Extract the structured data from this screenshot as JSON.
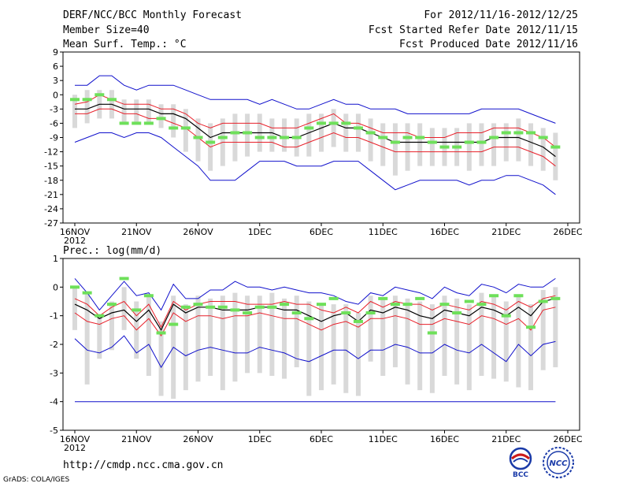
{
  "header": {
    "title": "DERF/NCC/BCC Monthly Forecast",
    "member_size": "Member Size=40",
    "variable": "Mean Surf. Temp.: °C",
    "period": "For 2012/11/16-2012/12/25",
    "fcst_started": "Fcst Started Refer Date 2012/11/15",
    "fcst_produced": "Fcst Produced Date 2012/11/16"
  },
  "footer": {
    "url": "http://cmdp.ncc.cma.gov.cn",
    "credit": "GrADS: COLA/IGES",
    "logo_left_text": "BCC",
    "logo_right_text": "NCC"
  },
  "colors": {
    "mean": "#000000",
    "spread": "#e8202a",
    "extreme": "#1010cc",
    "obs": "#6ee05a",
    "box": "#d9d9d9"
  },
  "chart_data": [
    {
      "type": "line",
      "title": "Mean Surf. Temp.: °C",
      "ylim": [
        -27,
        9
      ],
      "yticks": [
        "9",
        "6",
        "3",
        "0",
        "-3",
        "-6",
        "-9",
        "-12",
        "-15",
        "-18",
        "-21",
        "-24",
        "-27"
      ],
      "xticks": [
        {
          "day": 1,
          "label": "16NOV",
          "sub": "2012"
        },
        {
          "day": 6,
          "label": "21NOV"
        },
        {
          "day": 11,
          "label": "26NOV"
        },
        {
          "day": 16,
          "label": "1DEC"
        },
        {
          "day": 21,
          "label": "6DEC"
        },
        {
          "day": 26,
          "label": "11DEC"
        },
        {
          "day": 31,
          "label": "16DEC"
        },
        {
          "day": 36,
          "label": "21DEC"
        },
        {
          "day": 41,
          "label": "26DEC"
        }
      ],
      "days": 40,
      "series": [
        {
          "name": "max",
          "values": [
            2,
            2,
            4,
            4,
            2,
            1,
            2,
            2,
            2,
            1,
            0,
            -1,
            -1,
            -1,
            -1,
            -2,
            -1,
            -2,
            -3,
            -3,
            -2,
            -1,
            -2,
            -2,
            -3,
            -3,
            -3,
            -4,
            -4,
            -4,
            -4,
            -4,
            -4,
            -3,
            -3,
            -3,
            -3,
            -4,
            -5,
            -6
          ]
        },
        {
          "name": "upper",
          "values": [
            -2,
            -1.5,
            0,
            -1,
            -2,
            -2,
            -2,
            -3,
            -3,
            -4,
            -6,
            -7,
            -6,
            -6,
            -6,
            -6,
            -7,
            -7,
            -7,
            -6,
            -5,
            -4,
            -6,
            -6,
            -7,
            -8,
            -8,
            -8,
            -9,
            -9,
            -9,
            -8,
            -8,
            -8,
            -7,
            -7,
            -7,
            -8,
            -9,
            -11
          ]
        },
        {
          "name": "mean",
          "values": [
            -3,
            -3,
            -2,
            -2,
            -3,
            -3,
            -3,
            -4,
            -4,
            -5,
            -7,
            -9,
            -8,
            -8,
            -8,
            -8,
            -8,
            -9,
            -9,
            -8,
            -7,
            -6,
            -7,
            -7,
            -8,
            -9,
            -10,
            -10,
            -10,
            -10,
            -10,
            -10,
            -10,
            -10,
            -9,
            -9,
            -9,
            -10,
            -11,
            -13
          ]
        },
        {
          "name": "lower",
          "values": [
            -4,
            -4,
            -3,
            -3,
            -4,
            -4,
            -5,
            -5,
            -6,
            -7,
            -9,
            -11,
            -10,
            -10,
            -10,
            -10,
            -10,
            -11,
            -11,
            -10,
            -9,
            -8,
            -9,
            -9,
            -10,
            -11,
            -12,
            -12,
            -12,
            -12,
            -12,
            -12,
            -12,
            -12,
            -11,
            -11,
            -11,
            -12,
            -13,
            -15
          ]
        },
        {
          "name": "min",
          "values": [
            -10,
            -9,
            -8,
            -8,
            -9,
            -8,
            -8,
            -9,
            -11,
            -13,
            -15,
            -18,
            -18,
            -18,
            -16,
            -14,
            -14,
            -14,
            -15,
            -15,
            -15,
            -14,
            -14,
            -14,
            -16,
            -18,
            -20,
            -19,
            -18,
            -18,
            -18,
            -18,
            -19,
            -18,
            -18,
            -17,
            -17,
            -18,
            -19,
            -21
          ]
        }
      ],
      "boxes": {
        "high": [
          0,
          1,
          1,
          1,
          -1,
          -1,
          -1,
          -2,
          -2,
          -3,
          -5,
          -6,
          -5,
          -4,
          -4,
          -4,
          -5,
          -5,
          -5,
          -4,
          -4,
          -3,
          -4,
          -4,
          -5,
          -6,
          -6,
          -6,
          -6,
          -7,
          -7,
          -7,
          -6,
          -6,
          -6,
          -6,
          -5,
          -6,
          -7,
          -8
        ],
        "low": [
          -7,
          -6,
          -5,
          -5,
          -6,
          -6,
          -6,
          -7,
          -9,
          -12,
          -14,
          -16,
          -15,
          -14,
          -13,
          -12,
          -12,
          -12,
          -13,
          -13,
          -12,
          -11,
          -12,
          -12,
          -14,
          -15,
          -17,
          -16,
          -15,
          -15,
          -15,
          -15,
          -16,
          -15,
          -15,
          -14,
          -14,
          -15,
          -16,
          -18
        ]
      },
      "obs": [
        -1,
        -1,
        0,
        -1,
        -6,
        -6,
        -6,
        -5,
        -7,
        -7,
        -9,
        -10,
        -9,
        -8,
        -8,
        -9,
        -9,
        -9,
        -9,
        -7,
        -6,
        -6,
        -6,
        -7,
        -8,
        -9,
        -10,
        -9,
        -9,
        -10,
        -11,
        -11,
        -10,
        -10,
        -9,
        -8,
        -8,
        -8,
        -9,
        -11
      ]
    },
    {
      "type": "line",
      "title": "Prec.: log(mm/d)",
      "ylim": [
        -5,
        1
      ],
      "yticks": [
        "1",
        "0",
        "-1",
        "-2",
        "-3",
        "-4",
        "-5"
      ],
      "xticks": [
        {
          "day": 1,
          "label": "16NOV",
          "sub": "2012"
        },
        {
          "day": 6,
          "label": "21NOV"
        },
        {
          "day": 11,
          "label": "26NOV"
        },
        {
          "day": 16,
          "label": "1DEC"
        },
        {
          "day": 21,
          "label": "6DEC"
        },
        {
          "day": 26,
          "label": "11DEC"
        },
        {
          "day": 31,
          "label": "16DEC"
        },
        {
          "day": 36,
          "label": "21DEC"
        },
        {
          "day": 41,
          "label": "26DEC"
        }
      ],
      "days": 40,
      "series": [
        {
          "name": "max",
          "values": [
            0.3,
            -0.2,
            -0.8,
            -0.3,
            0.2,
            -0.3,
            -0.2,
            -0.8,
            0.1,
            -0.4,
            -0.4,
            -0.1,
            -0.1,
            0.2,
            0,
            0,
            -0.1,
            0,
            -0.1,
            -0.2,
            -0.2,
            -0.3,
            -0.5,
            -0.6,
            -0.2,
            -0.3,
            0,
            -0.1,
            -0.2,
            -0.4,
            0,
            -0.2,
            -0.3,
            0.1,
            0,
            -0.2,
            0.1,
            0,
            0,
            0.3
          ]
        },
        {
          "name": "upper",
          "values": [
            -0.4,
            -0.6,
            -1,
            -0.7,
            -0.5,
            -1,
            -0.6,
            -1.4,
            -0.5,
            -0.8,
            -0.6,
            -0.5,
            -0.5,
            -0.5,
            -0.6,
            -0.6,
            -0.6,
            -0.5,
            -0.6,
            -0.6,
            -0.8,
            -0.9,
            -0.7,
            -0.9,
            -0.5,
            -0.7,
            -0.5,
            -0.6,
            -0.6,
            -0.8,
            -0.6,
            -0.7,
            -0.8,
            -0.5,
            -0.6,
            -0.8,
            -0.5,
            -0.7,
            -0.4,
            -0.3
          ]
        },
        {
          "name": "mean",
          "values": [
            -0.6,
            -0.8,
            -1.1,
            -0.9,
            -0.8,
            -1.2,
            -0.8,
            -1.5,
            -0.6,
            -0.9,
            -0.7,
            -0.7,
            -0.8,
            -0.8,
            -0.8,
            -0.7,
            -0.7,
            -0.8,
            -0.8,
            -1,
            -1.2,
            -1,
            -0.9,
            -1.2,
            -0.8,
            -0.9,
            -0.7,
            -0.8,
            -1,
            -1.1,
            -0.8,
            -0.9,
            -1,
            -0.7,
            -0.8,
            -1,
            -0.7,
            -1,
            -0.5,
            -0.4
          ]
        },
        {
          "name": "lower",
          "values": [
            -0.9,
            -1.2,
            -1.3,
            -1.1,
            -1,
            -1.5,
            -1.1,
            -1.7,
            -0.9,
            -1.2,
            -1,
            -1,
            -1.1,
            -1,
            -1,
            -0.9,
            -1,
            -1.1,
            -1.1,
            -1.3,
            -1.5,
            -1.3,
            -1.2,
            -1.4,
            -1.1,
            -1.1,
            -1,
            -1.1,
            -1.3,
            -1.3,
            -1.1,
            -1.2,
            -1.3,
            -1,
            -1.1,
            -1.3,
            -1.1,
            -1.5,
            -0.8,
            -0.7
          ]
        },
        {
          "name": "min",
          "values": [
            -1.8,
            -2.2,
            -2.3,
            -2.1,
            -1.7,
            -2.3,
            -2,
            -2.8,
            -2.1,
            -2.4,
            -2.2,
            -2.1,
            -2.2,
            -2.3,
            -2.3,
            -2.1,
            -2.2,
            -2.3,
            -2.5,
            -2.6,
            -2.4,
            -2.2,
            -2.2,
            -2.5,
            -2.2,
            -2.2,
            -2,
            -2.1,
            -2.3,
            -2.3,
            -2,
            -2.2,
            -2.3,
            -2,
            -2.3,
            -2.6,
            -2,
            -2.4,
            -2,
            -1.9
          ]
        },
        {
          "name": "floor",
          "values": [
            -4,
            -4,
            -4,
            -4,
            -4,
            -4,
            -4,
            -4,
            -4,
            -4,
            -4,
            -4,
            -4,
            -4,
            -4,
            -4,
            -4,
            -4,
            -4,
            -4,
            -4,
            -4,
            -4,
            -4,
            -4,
            -4,
            -4,
            -4,
            -4,
            -4,
            -4,
            -4,
            -4,
            -4,
            -4,
            -4,
            -4,
            -4,
            -4,
            -4
          ]
        }
      ],
      "boxes": {
        "high": [
          0,
          -0.2,
          -1,
          -0.5,
          0,
          -0.5,
          -0.3,
          -1.2,
          -0.3,
          -0.6,
          -0.3,
          -0.4,
          -0.3,
          -0.2,
          -0.3,
          -0.3,
          -0.2,
          -0.4,
          -0.3,
          -0.5,
          -0.6,
          -0.6,
          -0.6,
          -0.9,
          -0.3,
          -0.4,
          -0.3,
          -0.4,
          -0.5,
          -0.6,
          -0.3,
          -0.4,
          -0.6,
          -0.2,
          -0.3,
          -0.5,
          -0.3,
          -0.6,
          -0.1,
          0
        ],
        "low": [
          -1.5,
          -3.4,
          -2.5,
          -2.2,
          -1.5,
          -2.5,
          -3.1,
          -3.8,
          -3.9,
          -3.6,
          -3.3,
          -3.1,
          -3.6,
          -3.3,
          -3,
          -3,
          -3.1,
          -3.2,
          -2.8,
          -3.8,
          -3.6,
          -3.4,
          -3.7,
          -3.8,
          -2.6,
          -3.1,
          -2.8,
          -3.4,
          -3.6,
          -3.7,
          -3.1,
          -3.4,
          -3.6,
          -3.1,
          -3.2,
          -3.3,
          -3.5,
          -3.6,
          -2.9,
          -2.8
        ]
      },
      "obs": [
        0,
        -0.2,
        -1,
        -0.6,
        0.3,
        -0.8,
        -0.3,
        -1.6,
        -1.3,
        -0.7,
        -0.6,
        -0.7,
        -0.7,
        -0.8,
        -0.9,
        -0.7,
        -0.7,
        -0.6,
        -0.9,
        -1.1,
        -0.6,
        -0.4,
        -0.9,
        -1.2,
        -0.9,
        -0.4,
        -0.6,
        -0.6,
        -0.4,
        -1.6,
        -0.6,
        -0.9,
        -0.5,
        -0.6,
        -0.3,
        -1,
        -0.3,
        -1.4,
        -0.5,
        -0.4
      ]
    }
  ]
}
